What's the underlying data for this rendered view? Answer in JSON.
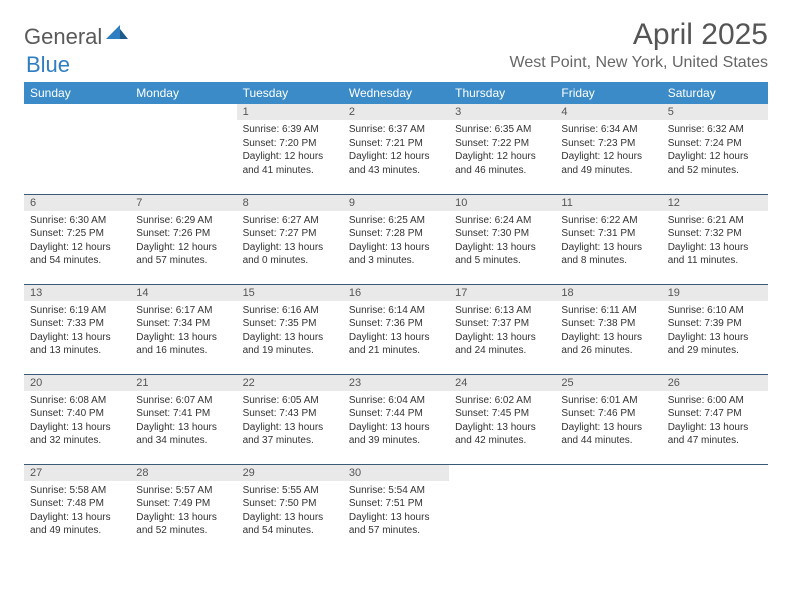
{
  "brand": {
    "part1": "General",
    "part2": "Blue"
  },
  "title": "April 2025",
  "location": "West Point, New York, United States",
  "colors": {
    "header_bg": "#3b8bc9",
    "header_text": "#ffffff",
    "daynum_bg": "#e9e9e9",
    "border": "#3b5a78",
    "brand_gray": "#5a5a5a",
    "brand_blue": "#2f7ec2",
    "title_color": "#555555",
    "location_color": "#666666"
  },
  "weekdays": [
    "Sunday",
    "Monday",
    "Tuesday",
    "Wednesday",
    "Thursday",
    "Friday",
    "Saturday"
  ],
  "weeks": [
    [
      {
        "n": "",
        "sr": "",
        "ss": "",
        "dl": ""
      },
      {
        "n": "",
        "sr": "",
        "ss": "",
        "dl": ""
      },
      {
        "n": "1",
        "sr": "6:39 AM",
        "ss": "7:20 PM",
        "dl": "12 hours and 41 minutes."
      },
      {
        "n": "2",
        "sr": "6:37 AM",
        "ss": "7:21 PM",
        "dl": "12 hours and 43 minutes."
      },
      {
        "n": "3",
        "sr": "6:35 AM",
        "ss": "7:22 PM",
        "dl": "12 hours and 46 minutes."
      },
      {
        "n": "4",
        "sr": "6:34 AM",
        "ss": "7:23 PM",
        "dl": "12 hours and 49 minutes."
      },
      {
        "n": "5",
        "sr": "6:32 AM",
        "ss": "7:24 PM",
        "dl": "12 hours and 52 minutes."
      }
    ],
    [
      {
        "n": "6",
        "sr": "6:30 AM",
        "ss": "7:25 PM",
        "dl": "12 hours and 54 minutes."
      },
      {
        "n": "7",
        "sr": "6:29 AM",
        "ss": "7:26 PM",
        "dl": "12 hours and 57 minutes."
      },
      {
        "n": "8",
        "sr": "6:27 AM",
        "ss": "7:27 PM",
        "dl": "13 hours and 0 minutes."
      },
      {
        "n": "9",
        "sr": "6:25 AM",
        "ss": "7:28 PM",
        "dl": "13 hours and 3 minutes."
      },
      {
        "n": "10",
        "sr": "6:24 AM",
        "ss": "7:30 PM",
        "dl": "13 hours and 5 minutes."
      },
      {
        "n": "11",
        "sr": "6:22 AM",
        "ss": "7:31 PM",
        "dl": "13 hours and 8 minutes."
      },
      {
        "n": "12",
        "sr": "6:21 AM",
        "ss": "7:32 PM",
        "dl": "13 hours and 11 minutes."
      }
    ],
    [
      {
        "n": "13",
        "sr": "6:19 AM",
        "ss": "7:33 PM",
        "dl": "13 hours and 13 minutes."
      },
      {
        "n": "14",
        "sr": "6:17 AM",
        "ss": "7:34 PM",
        "dl": "13 hours and 16 minutes."
      },
      {
        "n": "15",
        "sr": "6:16 AM",
        "ss": "7:35 PM",
        "dl": "13 hours and 19 minutes."
      },
      {
        "n": "16",
        "sr": "6:14 AM",
        "ss": "7:36 PM",
        "dl": "13 hours and 21 minutes."
      },
      {
        "n": "17",
        "sr": "6:13 AM",
        "ss": "7:37 PM",
        "dl": "13 hours and 24 minutes."
      },
      {
        "n": "18",
        "sr": "6:11 AM",
        "ss": "7:38 PM",
        "dl": "13 hours and 26 minutes."
      },
      {
        "n": "19",
        "sr": "6:10 AM",
        "ss": "7:39 PM",
        "dl": "13 hours and 29 minutes."
      }
    ],
    [
      {
        "n": "20",
        "sr": "6:08 AM",
        "ss": "7:40 PM",
        "dl": "13 hours and 32 minutes."
      },
      {
        "n": "21",
        "sr": "6:07 AM",
        "ss": "7:41 PM",
        "dl": "13 hours and 34 minutes."
      },
      {
        "n": "22",
        "sr": "6:05 AM",
        "ss": "7:43 PM",
        "dl": "13 hours and 37 minutes."
      },
      {
        "n": "23",
        "sr": "6:04 AM",
        "ss": "7:44 PM",
        "dl": "13 hours and 39 minutes."
      },
      {
        "n": "24",
        "sr": "6:02 AM",
        "ss": "7:45 PM",
        "dl": "13 hours and 42 minutes."
      },
      {
        "n": "25",
        "sr": "6:01 AM",
        "ss": "7:46 PM",
        "dl": "13 hours and 44 minutes."
      },
      {
        "n": "26",
        "sr": "6:00 AM",
        "ss": "7:47 PM",
        "dl": "13 hours and 47 minutes."
      }
    ],
    [
      {
        "n": "27",
        "sr": "5:58 AM",
        "ss": "7:48 PM",
        "dl": "13 hours and 49 minutes."
      },
      {
        "n": "28",
        "sr": "5:57 AM",
        "ss": "7:49 PM",
        "dl": "13 hours and 52 minutes."
      },
      {
        "n": "29",
        "sr": "5:55 AM",
        "ss": "7:50 PM",
        "dl": "13 hours and 54 minutes."
      },
      {
        "n": "30",
        "sr": "5:54 AM",
        "ss": "7:51 PM",
        "dl": "13 hours and 57 minutes."
      },
      {
        "n": "",
        "sr": "",
        "ss": "",
        "dl": ""
      },
      {
        "n": "",
        "sr": "",
        "ss": "",
        "dl": ""
      },
      {
        "n": "",
        "sr": "",
        "ss": "",
        "dl": ""
      }
    ]
  ],
  "labels": {
    "sunrise_prefix": "Sunrise: ",
    "sunset_prefix": "Sunset: ",
    "daylight_prefix": "Daylight: "
  }
}
